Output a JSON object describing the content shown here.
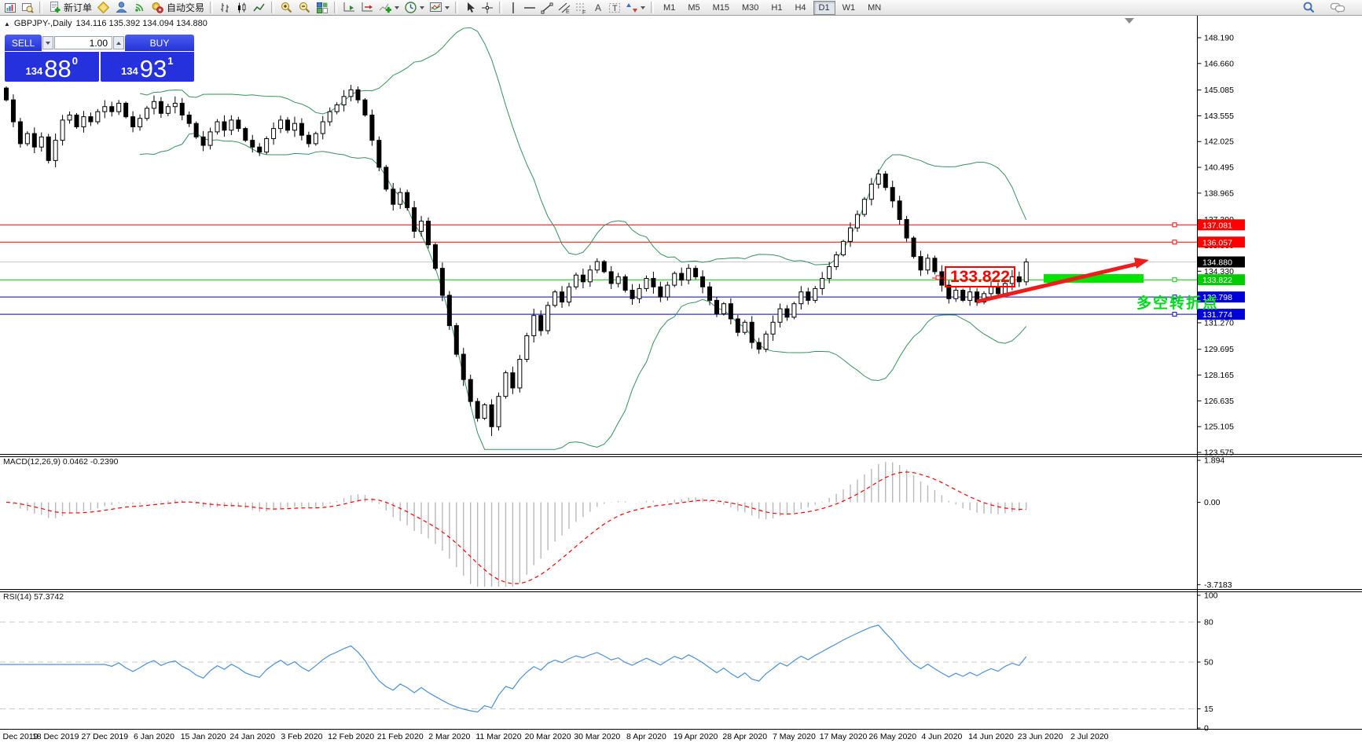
{
  "toolbar": {
    "new_order_label": "新订单",
    "autotrading_label": "自动交易",
    "timeframes": [
      "M1",
      "M5",
      "M15",
      "M30",
      "H1",
      "H4",
      "D1",
      "W1",
      "MN"
    ],
    "active_timeframe": "D1",
    "icons": [
      "new-chart-icon",
      "profiles-icon",
      "new-order-icon",
      "metaeditor-icon",
      "community-icon",
      "signals-icon",
      "autotrading-icon",
      "bar-chart-icon",
      "candlestick-icon",
      "line-chart-icon",
      "zoom-in-icon",
      "zoom-out-icon",
      "tile-windows-icon",
      "auto-scroll-icon",
      "chart-shift-icon",
      "indicators-icon",
      "periods-clock-icon",
      "templates-icon",
      "cursor-icon",
      "crosshair-icon",
      "vertical-line-icon",
      "horizontal-line-icon",
      "trendline-icon",
      "channel-icon",
      "fibonacci-icon",
      "text-icon",
      "text-label-icon",
      "shapes-icon",
      "search-icon",
      "chat-icon"
    ]
  },
  "chart_header": {
    "marker": "▲",
    "symbol_period": "GBPJPY-,Daily",
    "ohlc": "134.116 135.392 134.094 134.880"
  },
  "one_click": {
    "sell_label": "SELL",
    "buy_label": "BUY",
    "volume": "1.00",
    "sell_small": "134",
    "sell_big": "88",
    "sell_sup": "0",
    "buy_small": "134",
    "buy_big": "93",
    "buy_sup": "1"
  },
  "price_axis": {
    "ticks": [
      "148.190",
      "146.660",
      "145.085",
      "143.555",
      "142.025",
      "140.495",
      "138.965",
      "137.390",
      "135.860",
      "134.330",
      "132.800",
      "131.270",
      "129.695",
      "128.165",
      "126.635",
      "125.105",
      "123.575"
    ]
  },
  "levels": [
    {
      "price": 137.081,
      "label": "137.081",
      "color": "#ff0000",
      "label_bg": "#ff0000",
      "current": false
    },
    {
      "price": 136.057,
      "label": "136.057",
      "color": "#ff0000",
      "label_bg": "#ff0000",
      "current": false
    },
    {
      "price": 134.88,
      "label": "134.880",
      "color": "#c8c8c8",
      "label_bg": "#000000",
      "current": true
    },
    {
      "price": 133.822,
      "label": "133.822",
      "color": "#00c800",
      "label_bg": "#00cc00",
      "current": false
    },
    {
      "price": 132.798,
      "label": "132.798",
      "color": "#0000c8",
      "label_bg": "#0000d8",
      "current": false
    },
    {
      "price": 131.774,
      "label": "131.774",
      "color": "#0000c8",
      "label_bg": "#0000d8",
      "current": false
    }
  ],
  "annotations": {
    "price_callout": "133.822",
    "turning_point_text": "多空转折点",
    "highlight_color": "#00e400",
    "arrow_color": "#ee1c1c"
  },
  "macd": {
    "label": "MACD(12,26,9) 0.0462 -0.2390",
    "axis": [
      "1.894",
      "0.00",
      "-3.7183"
    ]
  },
  "rsi": {
    "label": "RSI(14) 57.3742",
    "axis": [
      "100",
      "80",
      "50",
      "15",
      "0"
    ]
  },
  "date_axis": [
    "Dec 2019",
    "18 Dec 2019",
    "27 Dec 2019",
    "6 Jan 2020",
    "15 Jan 2020",
    "24 Jan 2020",
    "3 Feb 2020",
    "12 Feb 2020",
    "21 Feb 2020",
    "2 Mar 2020",
    "11 Mar 2020",
    "20 Mar 2020",
    "30 Mar 2020",
    "8 Apr 2020",
    "19 Apr 2020",
    "28 Apr 2020",
    "7 May 2020",
    "17 May 2020",
    "26 May 2020",
    "4 Jun 2020",
    "14 Jun 2020",
    "23 Jun 2020",
    "2 Jul 2020"
  ],
  "chart_data": {
    "type": "candlestick",
    "symbol": "GBPJPY",
    "period": "Daily",
    "title": "GBPJPY-,Daily 134.116 135.392 134.094 134.880",
    "price_range": [
      123.575,
      148.19
    ],
    "hlines": [
      137.081,
      136.057,
      134.88,
      133.822,
      132.798,
      131.774
    ],
    "closes": [
      144.5,
      143.2,
      141.9,
      142.5,
      141.7,
      142.3,
      140.9,
      142.1,
      143.3,
      143.6,
      142.9,
      143.5,
      143.2,
      143.8,
      144.1,
      143.8,
      144.3,
      143.5,
      142.9,
      143.4,
      144.0,
      144.4,
      143.7,
      144.1,
      144.3,
      143.6,
      143.1,
      142.3,
      141.8,
      142.6,
      143.2,
      142.7,
      143.3,
      142.8,
      142.1,
      141.7,
      141.4,
      142.2,
      142.8,
      143.3,
      142.7,
      143.1,
      142.4,
      141.9,
      142.5,
      143.2,
      143.8,
      144.2,
      144.7,
      145.1,
      144.5,
      143.6,
      142.1,
      140.5,
      139.2,
      138.3,
      139.0,
      138.1,
      136.7,
      137.3,
      135.9,
      134.5,
      132.9,
      131.1,
      129.4,
      127.9,
      126.6,
      125.6,
      126.4,
      125.1,
      126.9,
      128.3,
      127.4,
      129.1,
      130.5,
      131.7,
      130.8,
      132.3,
      133.1,
      132.5,
      133.4,
      134.1,
      133.7,
      134.4,
      134.9,
      134.3,
      133.6,
      134.0,
      133.2,
      132.7,
      133.3,
      133.9,
      133.4,
      132.8,
      133.5,
      134.2,
      133.8,
      134.5,
      134.0,
      133.4,
      132.6,
      131.8,
      132.4,
      131.5,
      130.7,
      131.3,
      130.1,
      129.7,
      130.6,
      131.3,
      132.1,
      131.6,
      132.4,
      133.1,
      132.6,
      133.3,
      133.9,
      134.6,
      135.3,
      136.1,
      136.9,
      137.7,
      138.6,
      139.5,
      140.1,
      139.3,
      138.5,
      137.4,
      136.3,
      135.2,
      134.4,
      135.1,
      134.3,
      133.5,
      132.7,
      133.2,
      132.6,
      133.1,
      132.5,
      133.0,
      133.4,
      133.0,
      133.6,
      134.0,
      133.7,
      134.88
    ],
    "indicators": {
      "bollinger": {
        "period": 20,
        "deviation": 2,
        "color": "#35915c"
      },
      "macd": {
        "fast": 12,
        "slow": 26,
        "signal": 9,
        "current_values": "0.0462 -0.2390",
        "histogram_color": "#b8b8b8",
        "signal_color": "#ff0000",
        "range": [
          -3.7183,
          1.894
        ]
      },
      "rsi": {
        "period": 14,
        "current_value": 57.3742,
        "color": "#4a90d9",
        "levels": [
          80,
          50,
          15
        ]
      }
    }
  }
}
